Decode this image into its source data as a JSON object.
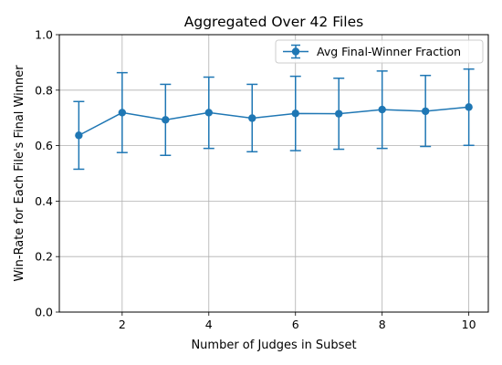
{
  "chart_data": {
    "type": "line",
    "title": "Aggregated Over 42 Files",
    "xlabel": "Number of Judges in Subset",
    "ylabel": "Win-Rate for Each File's Final Winner",
    "xlim": [
      0.55,
      10.45
    ],
    "ylim": [
      0.0,
      1.0
    ],
    "xticks": [
      2,
      4,
      6,
      8,
      10
    ],
    "yticks": [
      0.0,
      0.2,
      0.4,
      0.6,
      0.8,
      1.0
    ],
    "xtick_labels": [
      "2",
      "4",
      "6",
      "8",
      "10"
    ],
    "ytick_labels": [
      "0.0",
      "0.2",
      "0.4",
      "0.6",
      "0.8",
      "1.0"
    ],
    "grid": true,
    "legend_position": "top-right",
    "series": [
      {
        "name": "Avg Final-Winner Fraction",
        "color": "#1f77b4",
        "marker": "circle",
        "error_bars": true,
        "x": [
          1,
          2,
          3,
          4,
          5,
          6,
          7,
          8,
          9,
          10
        ],
        "y": [
          0.637,
          0.719,
          0.693,
          0.719,
          0.699,
          0.716,
          0.715,
          0.73,
          0.724,
          0.739
        ],
        "err_low": [
          0.515,
          0.575,
          0.565,
          0.59,
          0.578,
          0.582,
          0.587,
          0.59,
          0.597,
          0.601
        ],
        "err_high": [
          0.759,
          0.863,
          0.821,
          0.847,
          0.821,
          0.85,
          0.843,
          0.869,
          0.853,
          0.876
        ]
      }
    ]
  }
}
